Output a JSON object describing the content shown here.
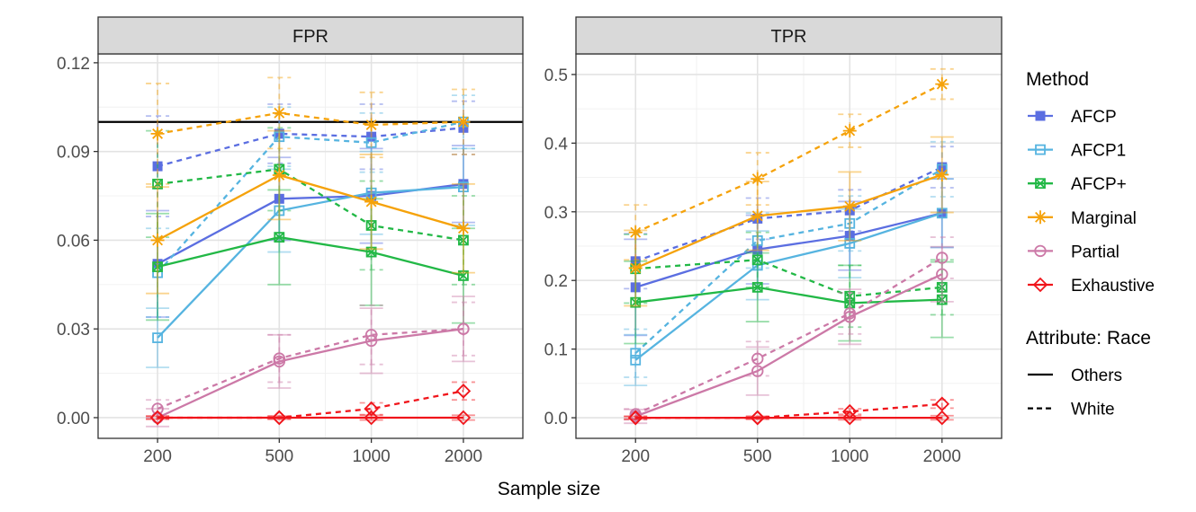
{
  "chart_data": {
    "type": "line",
    "xlabel": "Sample size",
    "x_categories": [
      200,
      500,
      1000,
      2000
    ],
    "x_scale": "log",
    "legend": {
      "position": "right",
      "method_title": "Method",
      "linetype_title": "Attribute: Race",
      "methods": [
        {
          "name": "AFCP",
          "color": "#5b6ee1",
          "marker": "square-filled"
        },
        {
          "name": "AFCP1",
          "color": "#56b4e0",
          "marker": "square-open"
        },
        {
          "name": "AFCP+",
          "color": "#22b846",
          "marker": "square-x"
        },
        {
          "name": "Marginal",
          "color": "#f5a20a",
          "marker": "asterisk"
        },
        {
          "name": "Partial",
          "color": "#cc79a7",
          "marker": "circle-open"
        },
        {
          "name": "Exhaustive",
          "color": "#f0151b",
          "marker": "diamond-open"
        }
      ],
      "linetypes": [
        {
          "name": "Others",
          "dash": "solid"
        },
        {
          "name": "White",
          "dash": "dashed"
        }
      ]
    },
    "panels": [
      {
        "title": "FPR",
        "ylim": [
          -0.007,
          0.123
        ],
        "yticks": [
          0.0,
          0.03,
          0.06,
          0.09,
          0.12
        ],
        "ytick_labels": [
          "0.00",
          "0.03",
          "0.06",
          "0.09",
          "0.12"
        ],
        "reference_line": 0.1,
        "series": [
          {
            "method": "AFCP",
            "group": "Others",
            "values": [
              0.052,
              0.074,
              0.075,
              0.079
            ],
            "err": [
              0.018,
              0.014,
              0.016,
              0.013
            ]
          },
          {
            "method": "AFCP",
            "group": "White",
            "values": [
              0.085,
              0.096,
              0.095,
              0.098
            ],
            "err": [
              0.017,
              0.01,
              0.011,
              0.009
            ]
          },
          {
            "method": "AFCP1",
            "group": "Others",
            "values": [
              0.027,
              0.07,
              0.076,
              0.078
            ],
            "err": [
              0.01,
              0.014,
              0.014,
              0.013
            ]
          },
          {
            "method": "AFCP1",
            "group": "White",
            "values": [
              0.049,
              0.095,
              0.093,
              0.1
            ],
            "err": [
              0.015,
              0.01,
              0.01,
              0.009
            ]
          },
          {
            "method": "AFCP+",
            "group": "Others",
            "values": [
              0.051,
              0.061,
              0.056,
              0.048
            ],
            "err": [
              0.018,
              0.016,
              0.018,
              0.016
            ]
          },
          {
            "method": "AFCP+",
            "group": "White",
            "values": [
              0.079,
              0.084,
              0.065,
              0.06
            ],
            "err": [
              0.018,
              0.014,
              0.015,
              0.015
            ]
          },
          {
            "method": "Marginal",
            "group": "Others",
            "values": [
              0.06,
              0.082,
              0.073,
              0.064
            ],
            "err": [
              0.018,
              0.015,
              0.016,
              0.015
            ]
          },
          {
            "method": "Marginal",
            "group": "White",
            "values": [
              0.096,
              0.103,
              0.099,
              0.1
            ],
            "err": [
              0.017,
              0.012,
              0.011,
              0.011
            ]
          },
          {
            "method": "Partial",
            "group": "Others",
            "values": [
              0.0,
              0.019,
              0.026,
              0.03
            ],
            "err": [
              0.003,
              0.009,
              0.011,
              0.011
            ]
          },
          {
            "method": "Partial",
            "group": "White",
            "values": [
              0.003,
              0.02,
              0.028,
              0.03
            ],
            "err": [
              0.003,
              0.008,
              0.01,
              0.009
            ]
          },
          {
            "method": "Exhaustive",
            "group": "Others",
            "values": [
              0.0,
              0.0,
              0.0,
              0.0
            ],
            "err": [
              0.0005,
              0.0005,
              0.0008,
              0.0008
            ]
          },
          {
            "method": "Exhaustive",
            "group": "White",
            "values": [
              0.0,
              0.0,
              0.003,
              0.009
            ],
            "err": [
              0.0005,
              0.0005,
              0.002,
              0.003
            ]
          }
        ]
      },
      {
        "title": "TPR",
        "ylim": [
          -0.03,
          0.53
        ],
        "yticks": [
          0.0,
          0.1,
          0.2,
          0.3,
          0.4,
          0.5
        ],
        "ytick_labels": [
          "0.0",
          "0.1",
          "0.2",
          "0.3",
          "0.4",
          "0.5"
        ],
        "reference_line": null,
        "series": [
          {
            "method": "AFCP",
            "group": "Others",
            "values": [
              0.19,
              0.245,
              0.265,
              0.298
            ],
            "err": [
              0.07,
              0.05,
              0.05,
              0.05
            ]
          },
          {
            "method": "AFCP",
            "group": "White",
            "values": [
              0.228,
              0.29,
              0.302,
              0.365
            ],
            "err": [
              0.04,
              0.03,
              0.03,
              0.03
            ]
          },
          {
            "method": "AFCP1",
            "group": "Others",
            "values": [
              0.084,
              0.222,
              0.254,
              0.298
            ],
            "err": [
              0.037,
              0.05,
              0.05,
              0.05
            ]
          },
          {
            "method": "AFCP1",
            "group": "White",
            "values": [
              0.094,
              0.258,
              0.283,
              0.362
            ],
            "err": [
              0.035,
              0.04,
              0.04,
              0.04
            ]
          },
          {
            "method": "AFCP+",
            "group": "Others",
            "values": [
              0.168,
              0.19,
              0.167,
              0.172
            ],
            "err": [
              0.06,
              0.05,
              0.055,
              0.055
            ]
          },
          {
            "method": "AFCP+",
            "group": "White",
            "values": [
              0.217,
              0.23,
              0.177,
              0.19
            ],
            "err": [
              0.05,
              0.04,
              0.045,
              0.04
            ]
          },
          {
            "method": "Marginal",
            "group": "Others",
            "values": [
              0.218,
              0.294,
              0.308,
              0.354
            ],
            "err": [
              0.055,
              0.05,
              0.05,
              0.055
            ]
          },
          {
            "method": "Marginal",
            "group": "White",
            "values": [
              0.27,
              0.348,
              0.418,
              0.486
            ],
            "err": [
              0.04,
              0.038,
              0.024,
              0.022
            ]
          },
          {
            "method": "Partial",
            "group": "Others",
            "values": [
              0.002,
              0.068,
              0.147,
              0.209
            ],
            "err": [
              0.01,
              0.035,
              0.04,
              0.04
            ]
          },
          {
            "method": "Partial",
            "group": "White",
            "values": [
              0.005,
              0.086,
              0.152,
              0.233
            ],
            "err": [
              0.008,
              0.025,
              0.03,
              0.03
            ]
          },
          {
            "method": "Exhaustive",
            "group": "Others",
            "values": [
              0.0,
              0.0,
              0.0,
              0.0
            ],
            "err": [
              0.002,
              0.002,
              0.003,
              0.003
            ]
          },
          {
            "method": "Exhaustive",
            "group": "White",
            "values": [
              0.0,
              0.0,
              0.009,
              0.02
            ],
            "err": [
              0.002,
              0.002,
              0.004,
              0.006
            ]
          }
        ]
      }
    ]
  }
}
